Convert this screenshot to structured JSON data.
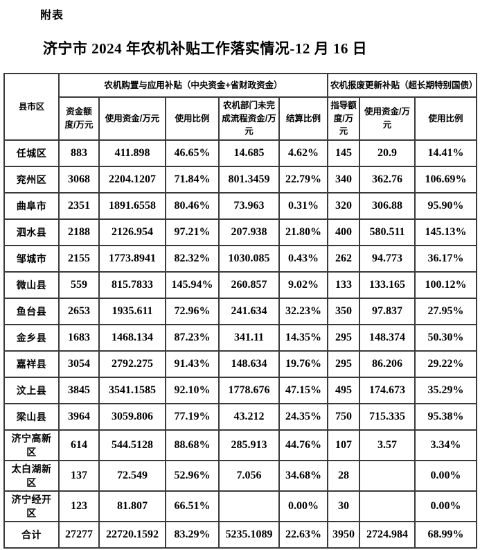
{
  "page": {
    "annex_label": "附表",
    "title": "济宁市 2024 年农机补贴工作落实情况-12 月 16 日"
  },
  "table": {
    "corner_header": "县市区",
    "groups": [
      {
        "label": "农机购置与应用补贴（中央资金+省财政资金）",
        "columns": [
          "资金额度/万元",
          "使用资金/万元",
          "使用比例",
          "农机部门未完成流程资金/万元",
          "结算比例"
        ]
      },
      {
        "label": "农机报废更新补贴（超长期特别国债）",
        "columns": [
          "指导额度/万元",
          "使用资金/万元",
          "使用比例"
        ]
      }
    ],
    "rows": [
      {
        "region": "任城区",
        "cells": [
          "883",
          "411.898",
          "46.65%",
          "14.685",
          "4.62%",
          "145",
          "20.9",
          "14.41%"
        ]
      },
      {
        "region": "兖州区",
        "cells": [
          "3068",
          "2204.1207",
          "71.84%",
          "801.3459",
          "22.79%",
          "340",
          "362.76",
          "106.69%"
        ]
      },
      {
        "region": "曲阜市",
        "cells": [
          "2351",
          "1891.6558",
          "80.46%",
          "73.963",
          "0.31%",
          "320",
          "306.88",
          "95.90%"
        ]
      },
      {
        "region": "泗水县",
        "cells": [
          "2188",
          "2126.954",
          "97.21%",
          "207.938",
          "21.80%",
          "400",
          "580.511",
          "145.13%"
        ]
      },
      {
        "region": "邹城市",
        "cells": [
          "2155",
          "1773.8941",
          "82.32%",
          "1030.085",
          "0.43%",
          "262",
          "94.773",
          "36.17%"
        ]
      },
      {
        "region": "微山县",
        "cells": [
          "559",
          "815.7833",
          "145.94%",
          "260.857",
          "9.02%",
          "133",
          "133.165",
          "100.12%"
        ]
      },
      {
        "region": "鱼台县",
        "cells": [
          "2653",
          "1935.611",
          "72.96%",
          "241.634",
          "32.23%",
          "350",
          "97.837",
          "27.95%"
        ]
      },
      {
        "region": "金乡县",
        "cells": [
          "1683",
          "1468.134",
          "87.23%",
          "341.11",
          "14.35%",
          "295",
          "148.374",
          "50.30%"
        ]
      },
      {
        "region": "嘉祥县",
        "cells": [
          "3054",
          "2792.275",
          "91.43%",
          "148.634",
          "19.76%",
          "295",
          "86.206",
          "29.22%"
        ]
      },
      {
        "region": "汶上县",
        "cells": [
          "3845",
          "3541.1585",
          "92.10%",
          "1778.676",
          "47.15%",
          "495",
          "174.673",
          "35.29%"
        ]
      },
      {
        "region": "梁山县",
        "cells": [
          "3964",
          "3059.806",
          "77.19%",
          "43.212",
          "24.35%",
          "750",
          "715.335",
          "95.38%"
        ]
      },
      {
        "region": "济宁高新区",
        "cells": [
          "614",
          "544.5128",
          "88.68%",
          "285.913",
          "44.76%",
          "107",
          "3.57",
          "3.34%"
        ]
      },
      {
        "region": "太白湖新区",
        "cells": [
          "137",
          "72.549",
          "52.96%",
          "7.056",
          "34.68%",
          "28",
          "",
          "0.00%"
        ]
      },
      {
        "region": "济宁经开区",
        "cells": [
          "123",
          "81.807",
          "66.51%",
          "",
          "0.00%",
          "30",
          "",
          "0.00%"
        ]
      },
      {
        "region": "合计",
        "cells": [
          "27277",
          "22720.1592",
          "83.29%",
          "5235.1089",
          "22.63%",
          "3950",
          "2724.984",
          "68.99%"
        ]
      }
    ]
  }
}
